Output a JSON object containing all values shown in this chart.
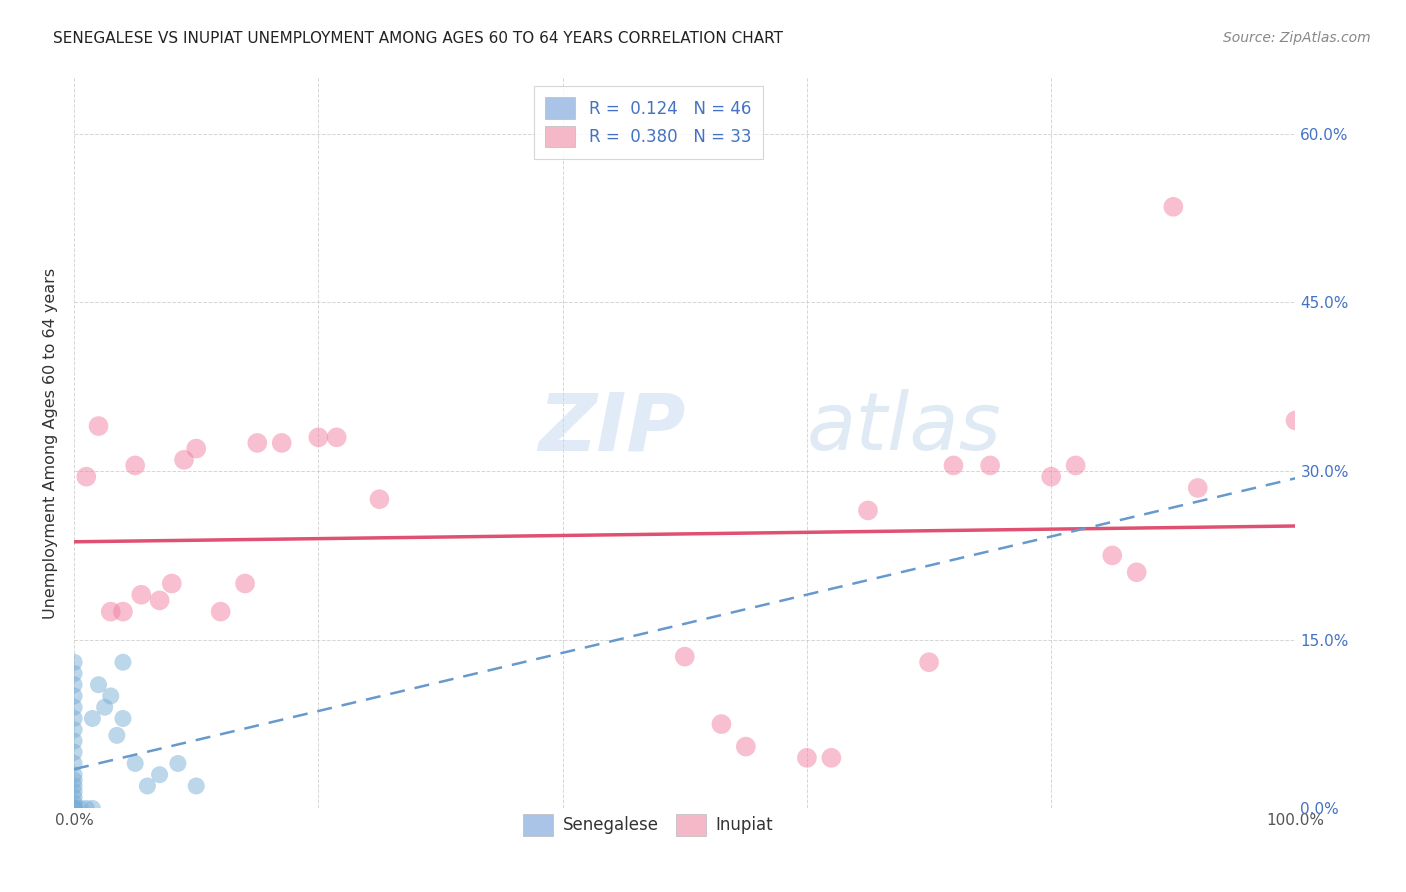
{
  "title": "SENEGALESE VS INUPIAT UNEMPLOYMENT AMONG AGES 60 TO 64 YEARS CORRELATION CHART",
  "source": "Source: ZipAtlas.com",
  "ylabel": "Unemployment Among Ages 60 to 64 years",
  "xlim": [
    0.0,
    1.0
  ],
  "ylim": [
    0.0,
    0.65
  ],
  "xticks": [
    0.0,
    0.2,
    0.4,
    0.6,
    0.8,
    1.0
  ],
  "xtick_labels": [
    "0.0%",
    "",
    "",
    "",
    "",
    "100.0%"
  ],
  "ytick_positions": [
    0.0,
    0.15,
    0.3,
    0.45,
    0.6
  ],
  "ytick_labels_left": [
    "",
    "",
    "",
    "",
    ""
  ],
  "ytick_labels_right": [
    "0.0%",
    "15.0%",
    "30.0%",
    "45.0%",
    "60.0%"
  ],
  "watermark_zip": "ZIP",
  "watermark_atlas": "atlas",
  "senegalese_color": "#7aaed6",
  "inupiat_color": "#f080a0",
  "senegalese_points": [
    [
      0.0,
      0.0
    ],
    [
      0.0,
      0.0
    ],
    [
      0.0,
      0.0
    ],
    [
      0.0,
      0.0
    ],
    [
      0.0,
      0.0
    ],
    [
      0.0,
      0.0
    ],
    [
      0.0,
      0.0
    ],
    [
      0.0,
      0.0
    ],
    [
      0.0,
      0.0
    ],
    [
      0.0,
      0.0
    ],
    [
      0.0,
      0.0
    ],
    [
      0.0,
      0.0
    ],
    [
      0.0,
      0.0
    ],
    [
      0.0,
      0.0
    ],
    [
      0.0,
      0.0
    ],
    [
      0.0,
      0.005
    ],
    [
      0.0,
      0.01
    ],
    [
      0.0,
      0.015
    ],
    [
      0.0,
      0.02
    ],
    [
      0.0,
      0.025
    ],
    [
      0.0,
      0.03
    ],
    [
      0.0,
      0.04
    ],
    [
      0.0,
      0.05
    ],
    [
      0.0,
      0.06
    ],
    [
      0.0,
      0.07
    ],
    [
      0.0,
      0.08
    ],
    [
      0.0,
      0.09
    ],
    [
      0.0,
      0.1
    ],
    [
      0.0,
      0.11
    ],
    [
      0.0,
      0.12
    ],
    [
      0.0,
      0.13
    ],
    [
      0.005,
      0.0
    ],
    [
      0.01,
      0.0
    ],
    [
      0.015,
      0.0
    ],
    [
      0.015,
      0.08
    ],
    [
      0.02,
      0.11
    ],
    [
      0.025,
      0.09
    ],
    [
      0.03,
      0.1
    ],
    [
      0.035,
      0.065
    ],
    [
      0.04,
      0.08
    ],
    [
      0.04,
      0.13
    ],
    [
      0.05,
      0.04
    ],
    [
      0.06,
      0.02
    ],
    [
      0.07,
      0.03
    ],
    [
      0.085,
      0.04
    ],
    [
      0.1,
      0.02
    ]
  ],
  "inupiat_points": [
    [
      0.01,
      0.295
    ],
    [
      0.02,
      0.34
    ],
    [
      0.03,
      0.175
    ],
    [
      0.04,
      0.175
    ],
    [
      0.05,
      0.305
    ],
    [
      0.055,
      0.19
    ],
    [
      0.07,
      0.185
    ],
    [
      0.08,
      0.2
    ],
    [
      0.09,
      0.31
    ],
    [
      0.1,
      0.32
    ],
    [
      0.12,
      0.175
    ],
    [
      0.14,
      0.2
    ],
    [
      0.15,
      0.325
    ],
    [
      0.17,
      0.325
    ],
    [
      0.2,
      0.33
    ],
    [
      0.215,
      0.33
    ],
    [
      0.25,
      0.275
    ],
    [
      0.5,
      0.135
    ],
    [
      0.53,
      0.075
    ],
    [
      0.55,
      0.055
    ],
    [
      0.6,
      0.045
    ],
    [
      0.62,
      0.045
    ],
    [
      0.65,
      0.265
    ],
    [
      0.7,
      0.13
    ],
    [
      0.72,
      0.305
    ],
    [
      0.75,
      0.305
    ],
    [
      0.8,
      0.295
    ],
    [
      0.82,
      0.305
    ],
    [
      0.85,
      0.225
    ],
    [
      0.87,
      0.21
    ],
    [
      0.9,
      0.535
    ],
    [
      0.92,
      0.285
    ],
    [
      1.0,
      0.345
    ]
  ],
  "senegalese_trendline_color": "#6699cc",
  "senegalese_trendline_style": "dashed",
  "inupiat_trendline_color": "#e05070",
  "inupiat_trendline_style": "solid",
  "grid_color": "#cccccc",
  "background_color": "#ffffff",
  "legend_patch_sen": "#aac4e8",
  "legend_patch_inu": "#f4b8c8",
  "legend_text_color": "#4472c4",
  "right_axis_color": "#4472c4",
  "title_fontsize": 11,
  "source_fontsize": 10
}
